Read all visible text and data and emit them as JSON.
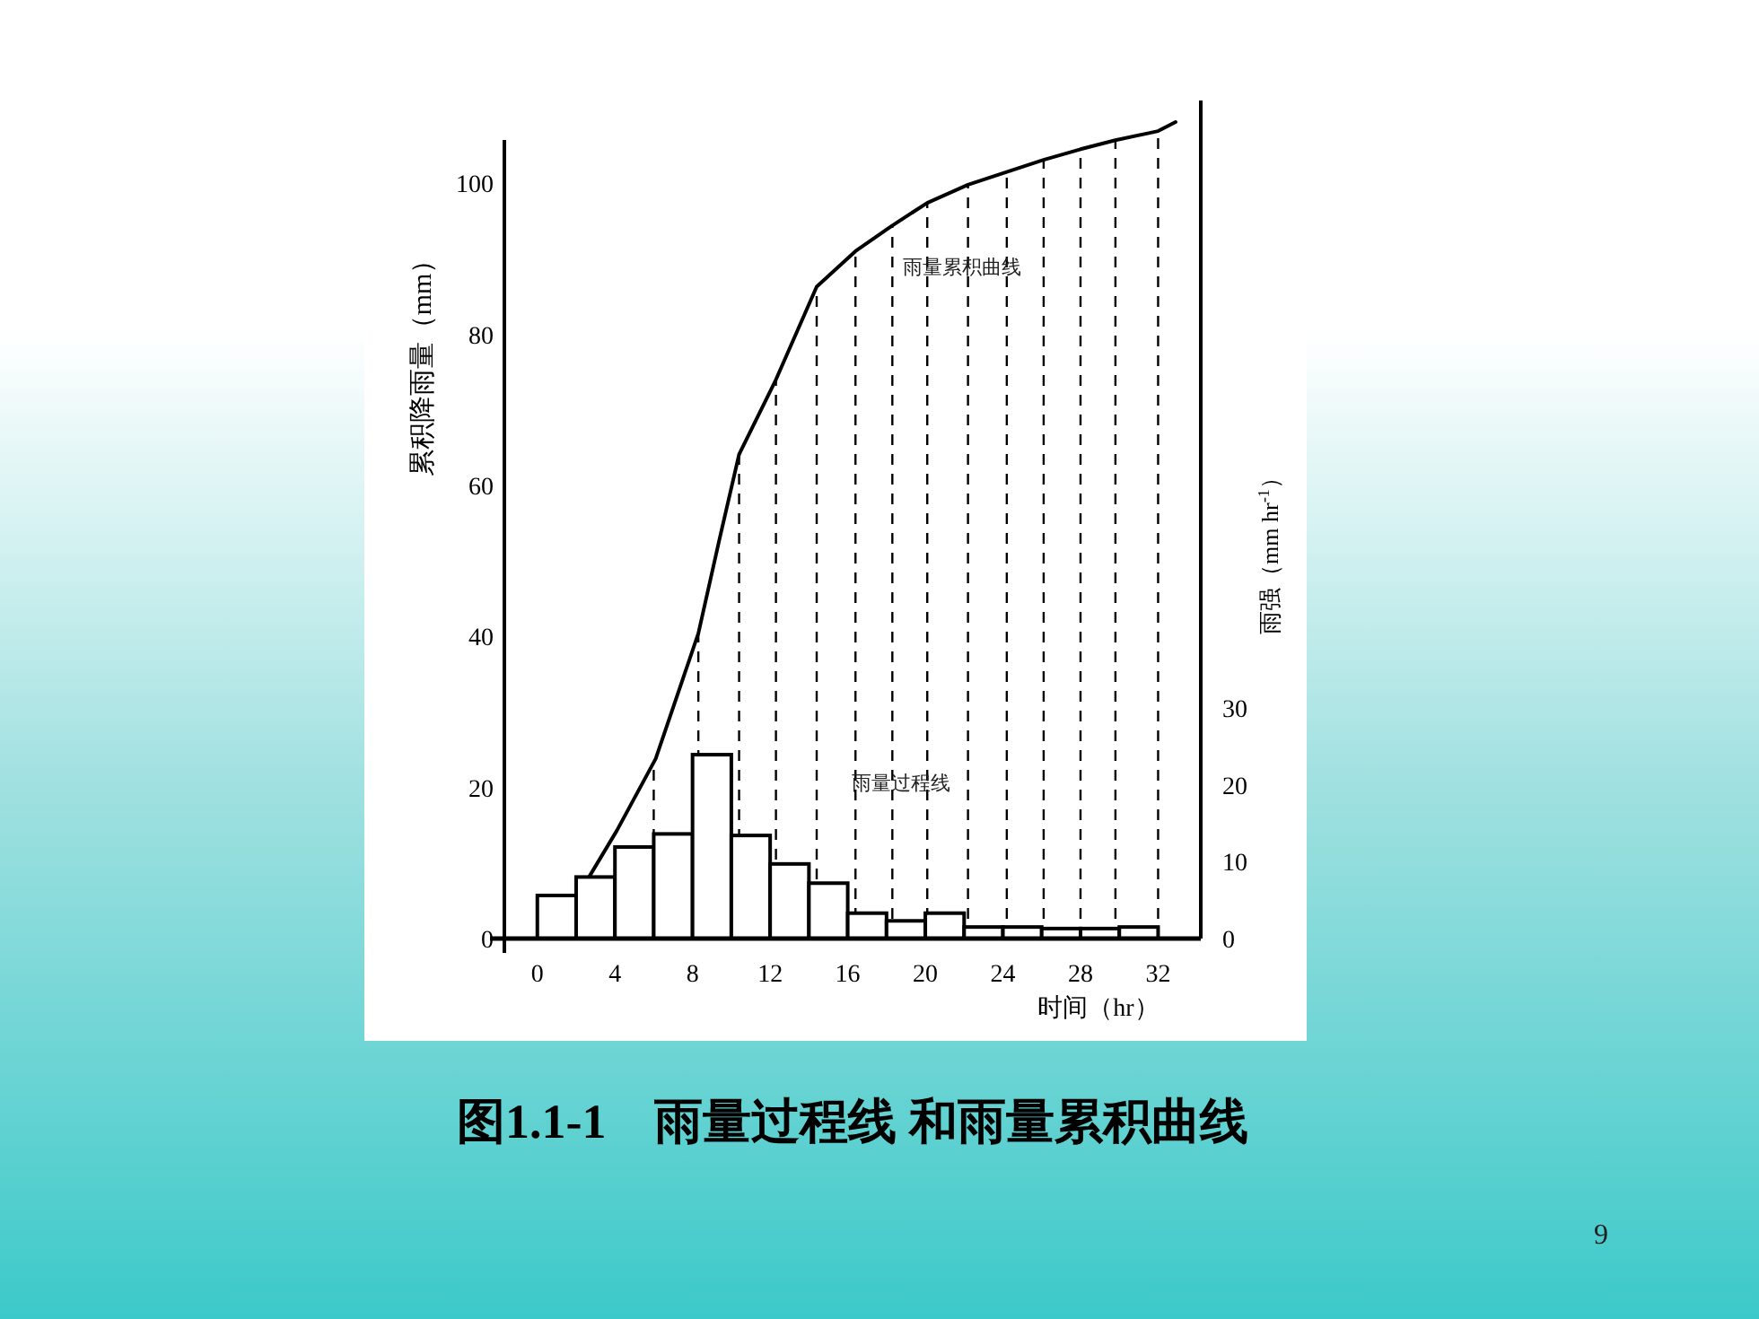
{
  "chart_data": {
    "type": "histogram",
    "title": "图1.1-1　雨量过程线 和雨量累积曲线",
    "xlabel": "时间（hr）",
    "ylabel": "累积降雨量（mm）",
    "y2label": "雨强（mm hr$^{-1}$）",
    "bins": [
      0,
      2,
      4,
      6,
      8,
      10,
      12,
      14,
      16,
      18,
      20,
      22,
      24,
      26,
      28,
      30,
      32
    ],
    "series": [
      {
        "axis": "y2",
        "color": "#ffffff",
        "values": [
          5.6,
          8.0,
          11.9,
          13.6,
          23.9,
          13.4,
          9.7,
          7.2,
          3.3,
          2.3,
          3.3,
          1.5,
          1.5,
          1.3,
          1.3,
          1.5
        ]
      },
      {
        "type": "line",
        "color": "#000000",
        "x": [
          2.7,
          4.1,
          6.1,
          8.3,
          9.4,
          10.4,
          12.3,
          14.4,
          16.4,
          18.3,
          20.1,
          22.2,
          24.2,
          26.1,
          28.0,
          29.8,
          32.0,
          32.9
        ],
        "values": [
          8.3,
          14.3,
          23.8,
          40.4,
          53,
          64.1,
          74.0,
          86.3,
          91.0,
          94.4,
          97.4,
          99.8,
          101.5,
          103.1,
          104.5,
          105.7,
          106.9,
          108.1
        ]
      }
    ],
    "xlim": [
      -1.7,
      34.2
    ],
    "xticks": [
      0,
      4,
      8,
      12,
      16,
      20,
      24,
      28,
      32
    ],
    "ylim": [
      0,
      110
    ],
    "yticks": [
      0,
      20,
      40,
      60,
      80,
      100
    ],
    "y2lim": [
      0,
      108
    ],
    "y2ticks": [
      0,
      10,
      20,
      30
    ],
    "ref_lines": [
      {
        "axis": "x",
        "value": 6,
        "line_style": "dashed",
        "color": "#000000"
      },
      {
        "axis": "x",
        "value": 8.3,
        "line_style": "dashed",
        "color": "#000000"
      },
      {
        "axis": "x",
        "value": 10.4,
        "line_style": "dashed",
        "color": "#000000"
      },
      {
        "axis": "x",
        "value": 12.3,
        "line_style": "dashed",
        "color": "#000000"
      },
      {
        "axis": "x",
        "value": 14.4,
        "line_style": "dashed",
        "color": "#000000"
      },
      {
        "axis": "x",
        "value": 16.4,
        "line_style": "dashed",
        "color": "#000000"
      },
      {
        "axis": "x",
        "value": 18.3,
        "line_style": "dashed",
        "color": "#000000"
      },
      {
        "axis": "x",
        "value": 20.1,
        "line_style": "dashed",
        "color": "#000000"
      },
      {
        "axis": "x",
        "value": 22.2,
        "line_style": "dashed",
        "color": "#000000"
      },
      {
        "axis": "x",
        "value": 24.2,
        "line_style": "dashed",
        "color": "#000000"
      },
      {
        "axis": "x",
        "value": 26.1,
        "line_style": "dashed",
        "color": "#000000"
      },
      {
        "axis": "x",
        "value": 28,
        "line_style": "dashed",
        "color": "#000000"
      },
      {
        "axis": "x",
        "value": 29.8,
        "line_style": "dashed",
        "color": "#000000"
      },
      {
        "axis": "x",
        "value": 32,
        "line_style": "dashed",
        "color": "#000000"
      }
    ],
    "annotations": [
      {
        "text": "雨量累积曲线",
        "x": 21.9,
        "y": 88
      },
      "雨量过程线",
      "9"
    ],
    "grid": false
  }
}
